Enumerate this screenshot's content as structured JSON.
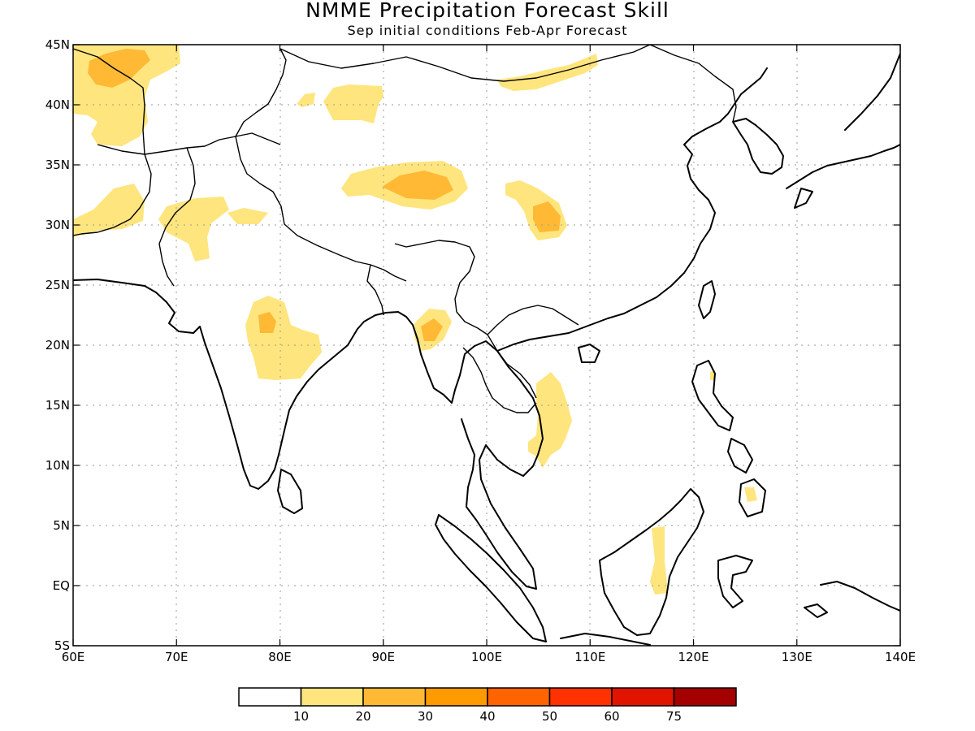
{
  "title": "NMME Precipitation Forecast Skill",
  "subtitle": "Sep initial conditions  Feb-Apr Forecast",
  "map": {
    "lon_range": [
      60,
      140
    ],
    "lat_range": [
      -5,
      45
    ],
    "x_ticks": [
      {
        "lon": 60,
        "label": "60E"
      },
      {
        "lon": 70,
        "label": "70E"
      },
      {
        "lon": 80,
        "label": "80E"
      },
      {
        "lon": 90,
        "label": "90E"
      },
      {
        "lon": 100,
        "label": "100E"
      },
      {
        "lon": 110,
        "label": "110E"
      },
      {
        "lon": 120,
        "label": "120E"
      },
      {
        "lon": 130,
        "label": "130E"
      },
      {
        "lon": 140,
        "label": "140E"
      }
    ],
    "y_ticks": [
      {
        "lat": 45,
        "label": "45N"
      },
      {
        "lat": 40,
        "label": "40N"
      },
      {
        "lat": 35,
        "label": "35N"
      },
      {
        "lat": 30,
        "label": "30N"
      },
      {
        "lat": 25,
        "label": "25N"
      },
      {
        "lat": 20,
        "label": "20N"
      },
      {
        "lat": 15,
        "label": "15N"
      },
      {
        "lat": 10,
        "label": "10N"
      },
      {
        "lat": 5,
        "label": "5N"
      },
      {
        "lat": 0,
        "label": "EQ"
      },
      {
        "lat": -5,
        "label": "5S"
      }
    ],
    "grid": true
  },
  "colorbar": {
    "colors": [
      "#ffffff",
      "#ffe57e",
      "#ffb935",
      "#ff9a00",
      "#ff6400",
      "#ff3200",
      "#e11400",
      "#a50000"
    ],
    "labels": [
      "10",
      "20",
      "30",
      "40",
      "50",
      "60",
      "75"
    ]
  },
  "chart_data": {
    "type": "heatmap",
    "title": "NMME Precipitation Forecast Skill",
    "subtitle": "Sep initial conditions  Feb-Apr Forecast",
    "legend_placement": "bottom",
    "levels": [
      10,
      20,
      30,
      40,
      50,
      60,
      75
    ],
    "regions": [
      {
        "lon": [
          60,
          66
        ],
        "lat": [
          38,
          45
        ],
        "level_min": 10,
        "level_max": 30
      },
      {
        "lon": [
          62,
          68
        ],
        "lat": [
          36,
          39
        ],
        "level_min": 10,
        "level_max": 20
      },
      {
        "lon": [
          60,
          66
        ],
        "lat": [
          29,
          33
        ],
        "level_min": 10,
        "level_max": 20
      },
      {
        "lon": [
          64,
          76
        ],
        "lat": [
          27,
          31
        ],
        "level_min": 10,
        "level_max": 20
      },
      {
        "lon": [
          84,
          89
        ],
        "lat": [
          39,
          43
        ],
        "level_min": 10,
        "level_max": 20
      },
      {
        "lon": [
          93,
          102
        ],
        "lat": [
          43,
          44
        ],
        "level_min": 10,
        "level_max": 20
      },
      {
        "lon": [
          87,
          98
        ],
        "lat": [
          31,
          35
        ],
        "level_min": 10,
        "level_max": 30
      },
      {
        "lon": [
          101,
          104
        ],
        "lat": [
          28,
          33
        ],
        "level_min": 10,
        "level_max": 30
      },
      {
        "lon": [
          78,
          84
        ],
        "lat": [
          17,
          24
        ],
        "level_min": 10,
        "level_max": 30
      },
      {
        "lon": [
          92,
          96
        ],
        "lat": [
          20,
          23
        ],
        "level_min": 10,
        "level_max": 40
      },
      {
        "lon": [
          102,
          106
        ],
        "lat": [
          11,
          17
        ],
        "level_min": 10,
        "level_max": 20
      },
      {
        "lon": [
          116,
          118
        ],
        "lat": [
          0,
          5
        ],
        "level_min": 10,
        "level_max": 20
      },
      {
        "lon": [
          125,
          126
        ],
        "lat": [
          7,
          8
        ],
        "level_min": 10,
        "level_max": 20
      }
    ]
  }
}
